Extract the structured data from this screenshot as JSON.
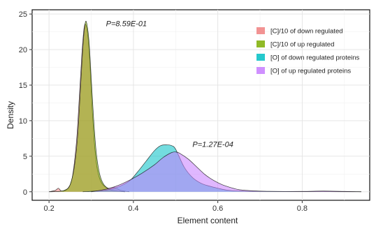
{
  "chart_data": {
    "type": "area",
    "xlabel": "Element content",
    "ylabel": "Density",
    "xlim": [
      0.16,
      0.96
    ],
    "ylim": [
      -1.2,
      25.6
    ],
    "xticks": [
      0.2,
      0.4,
      0.6,
      0.8
    ],
    "xtick_labels": [
      "0.2",
      "0.4",
      "0.6",
      "0.8"
    ],
    "yticks": [
      0,
      5,
      10,
      15,
      20,
      25
    ],
    "ytick_labels": [
      "0",
      "5",
      "10",
      "15",
      "20",
      "25"
    ],
    "grid": true,
    "legend_position": "top-right",
    "annotations": [
      {
        "text": "P=8.59E-01",
        "x": 0.335,
        "y": 23.3
      },
      {
        "text": "P=1.27E-04",
        "x": 0.54,
        "y": 6.3
      }
    ],
    "series": [
      {
        "name": "[C]/10 of down regulated",
        "color": "#f08080",
        "points": [
          [
            0.2,
            0
          ],
          [
            0.215,
            0.2
          ],
          [
            0.222,
            0.5
          ],
          [
            0.228,
            0.15
          ],
          [
            0.235,
            0.1
          ],
          [
            0.245,
            0.5
          ],
          [
            0.255,
            2.0
          ],
          [
            0.265,
            7.0
          ],
          [
            0.272,
            13.5
          ],
          [
            0.278,
            19.5
          ],
          [
            0.283,
            23.0
          ],
          [
            0.287,
            23.5
          ],
          [
            0.292,
            22.0
          ],
          [
            0.297,
            18.0
          ],
          [
            0.302,
            12.0
          ],
          [
            0.308,
            6.5
          ],
          [
            0.315,
            3.0
          ],
          [
            0.325,
            1.2
          ],
          [
            0.34,
            0.5
          ],
          [
            0.355,
            0.6
          ],
          [
            0.37,
            0.2
          ],
          [
            0.39,
            0
          ]
        ]
      },
      {
        "name": "[C]/10 of up regulated",
        "color": "#7cae00",
        "points": [
          [
            0.2,
            0
          ],
          [
            0.225,
            0.05
          ],
          [
            0.24,
            0.3
          ],
          [
            0.25,
            1.0
          ],
          [
            0.26,
            3.5
          ],
          [
            0.268,
            8.0
          ],
          [
            0.275,
            15.0
          ],
          [
            0.281,
            21.0
          ],
          [
            0.286,
            23.8
          ],
          [
            0.29,
            23.5
          ],
          [
            0.295,
            21.0
          ],
          [
            0.3,
            16.0
          ],
          [
            0.306,
            10.0
          ],
          [
            0.312,
            5.5
          ],
          [
            0.32,
            2.5
          ],
          [
            0.33,
            1.0
          ],
          [
            0.345,
            0.3
          ],
          [
            0.36,
            0.1
          ],
          [
            0.38,
            0
          ]
        ]
      },
      {
        "name": "[O] of down regulated proteins",
        "color": "#00bfc4",
        "points": [
          [
            0.28,
            0
          ],
          [
            0.33,
            0.2
          ],
          [
            0.36,
            0.6
          ],
          [
            0.39,
            1.5
          ],
          [
            0.41,
            2.8
          ],
          [
            0.43,
            4.3
          ],
          [
            0.45,
            5.8
          ],
          [
            0.465,
            6.5
          ],
          [
            0.48,
            6.6
          ],
          [
            0.49,
            6.5
          ],
          [
            0.5,
            6.0
          ],
          [
            0.52,
            3.5
          ],
          [
            0.54,
            2.0
          ],
          [
            0.56,
            1.2
          ],
          [
            0.58,
            0.8
          ],
          [
            0.6,
            0.5
          ],
          [
            0.62,
            0.25
          ],
          [
            0.65,
            0.1
          ],
          [
            0.7,
            0.05
          ],
          [
            0.8,
            0.02
          ],
          [
            0.94,
            0
          ]
        ]
      },
      {
        "name": "[O] of up regulated proteins",
        "color": "#c77cff",
        "points": [
          [
            0.3,
            0
          ],
          [
            0.33,
            0.3
          ],
          [
            0.36,
            0.8
          ],
          [
            0.39,
            1.6
          ],
          [
            0.42,
            2.6
          ],
          [
            0.45,
            3.8
          ],
          [
            0.47,
            4.8
          ],
          [
            0.49,
            5.5
          ],
          [
            0.5,
            5.6
          ],
          [
            0.51,
            5.4
          ],
          [
            0.53,
            4.6
          ],
          [
            0.55,
            3.5
          ],
          [
            0.57,
            2.4
          ],
          [
            0.59,
            1.6
          ],
          [
            0.61,
            1.0
          ],
          [
            0.63,
            0.6
          ],
          [
            0.65,
            0.3
          ],
          [
            0.68,
            0.15
          ],
          [
            0.72,
            0.06
          ],
          [
            0.8,
            0.05
          ],
          [
            0.85,
            0.1
          ],
          [
            0.9,
            0.05
          ],
          [
            0.94,
            0
          ]
        ]
      }
    ]
  }
}
